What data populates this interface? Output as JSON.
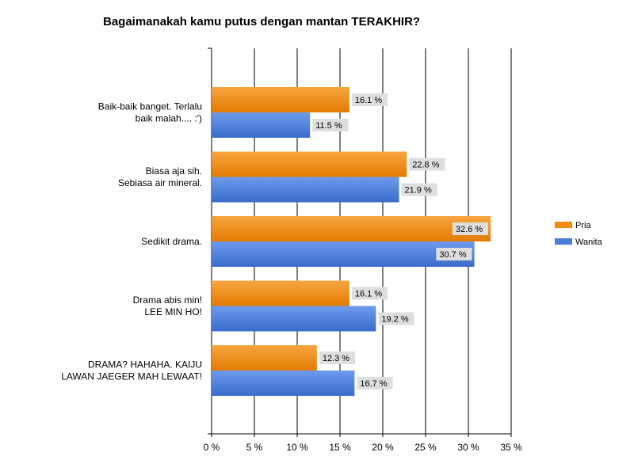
{
  "chart_data": {
    "type": "bar",
    "orientation": "horizontal",
    "title": "Bagaimanakah kamu putus dengan mantan TERAKHIR?",
    "categories": [
      [
        "Baik-baik banget. Terlalu",
        "baik malah.... :')"
      ],
      [
        "Biasa aja sih.",
        "Sebiasa air mineral."
      ],
      [
        "Sedikit drama."
      ],
      [
        "Drama abis min!",
        "LEE MIN HO!"
      ],
      [
        "DRAMA? HAHAHA. KAIJU",
        "LAWAN JAEGER MAH LEWAAT!"
      ]
    ],
    "series": [
      {
        "name": "Pria",
        "color": "#f28a0c",
        "values": [
          16.1,
          22.8,
          32.6,
          16.1,
          12.3
        ],
        "labels": [
          "16.1 %",
          "22.8 %",
          "32.6 %",
          "16.1 %",
          "12.3 %"
        ]
      },
      {
        "name": "Wanita",
        "color": "#4a7fdb",
        "values": [
          11.5,
          21.9,
          30.7,
          19.2,
          16.7
        ],
        "labels": [
          "11.5 %",
          "21.9 %",
          "30.7 %",
          "19.2 %",
          "16.7 %"
        ]
      }
    ],
    "xlim": [
      0,
      35
    ],
    "xticks": [
      0,
      5,
      10,
      15,
      20,
      25,
      30,
      35
    ],
    "xtick_labels": [
      "0 %",
      "5 %",
      "10 %",
      "15 %",
      "20 %",
      "25 %",
      "30 %",
      "35 %"
    ],
    "grid": true,
    "legend": "right"
  }
}
